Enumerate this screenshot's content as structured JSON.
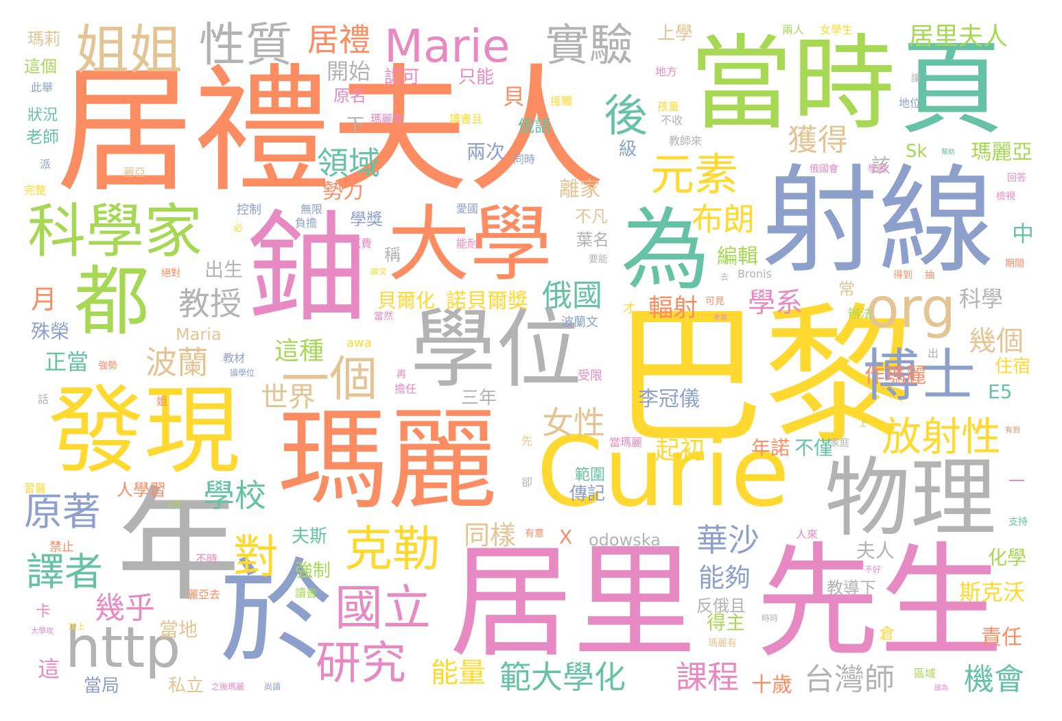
{
  "palette": {
    "orange": "#fc8d62",
    "blue": "#8da0cb",
    "pink": "#e78ac3",
    "green": "#a6d854",
    "yellow": "#ffd92f",
    "tan": "#e5c494",
    "gray": "#b3b3b3",
    "teal": "#66c2a5"
  },
  "words": [
    {
      "text": "居禮夫人",
      "color": "orange"
    },
    {
      "text": "巴黎",
      "color": "yellow"
    },
    {
      "text": "居里",
      "color": "pink"
    },
    {
      "text": "先生",
      "color": "pink"
    },
    {
      "text": "瑪麗",
      "color": "orange"
    },
    {
      "text": "射線",
      "color": "blue"
    },
    {
      "text": "當時",
      "color": "green"
    },
    {
      "text": "頁",
      "color": "teal"
    },
    {
      "text": "Curie",
      "color": "yellow"
    },
    {
      "text": "鈾",
      "color": "pink"
    },
    {
      "text": "年",
      "color": "gray"
    },
    {
      "text": "發現",
      "color": "yellow"
    },
    {
      "text": "學位",
      "color": "gray"
    },
    {
      "text": "於",
      "color": "blue"
    },
    {
      "text": "物理",
      "color": "gray"
    },
    {
      "text": "大學",
      "color": "orange"
    },
    {
      "text": "為",
      "color": "teal"
    },
    {
      "text": "都",
      "color": "green"
    },
    {
      "text": "科學家",
      "color": "green"
    },
    {
      "text": "Marie",
      "color": "pink"
    },
    {
      "text": "博士",
      "color": "blue"
    },
    {
      "text": "http",
      "color": "gray"
    },
    {
      "text": "克勒",
      "color": "yellow"
    },
    {
      "text": "姐姐",
      "color": "tan"
    },
    {
      "text": "性質",
      "color": "gray"
    },
    {
      "text": "實驗",
      "color": "gray"
    },
    {
      "text": "org",
      "color": "tan"
    },
    {
      "text": "一個",
      "color": "tan"
    },
    {
      "text": "國立",
      "color": "pink"
    },
    {
      "text": "研究",
      "color": "pink"
    },
    {
      "text": "元素",
      "color": "yellow"
    },
    {
      "text": "後",
      "color": "teal"
    },
    {
      "text": "放射性",
      "color": "yellow"
    },
    {
      "text": "原著",
      "color": "blue"
    },
    {
      "text": "譯者",
      "color": "teal"
    },
    {
      "text": "對",
      "color": "yellow"
    },
    {
      "text": "居禮",
      "color": "orange"
    },
    {
      "text": "居里夫人",
      "color": "green"
    },
    {
      "text": "獲得",
      "color": "tan"
    },
    {
      "text": "領域",
      "color": "teal"
    },
    {
      "text": "布朗",
      "color": "yellow"
    },
    {
      "text": "教授",
      "color": "gray"
    },
    {
      "text": "波蘭",
      "color": "tan"
    },
    {
      "text": "學校",
      "color": "teal"
    },
    {
      "text": "女性",
      "color": "tan"
    },
    {
      "text": "華沙",
      "color": "blue"
    },
    {
      "text": "範大學化",
      "color": "teal"
    },
    {
      "text": "課程",
      "color": "pink"
    },
    {
      "text": "台灣師",
      "color": "gray"
    },
    {
      "text": "機會",
      "color": "teal"
    },
    {
      "text": "幾乎",
      "color": "pink"
    },
    {
      "text": "世界",
      "color": "tan"
    },
    {
      "text": "能量",
      "color": "yellow"
    },
    {
      "text": "幾個",
      "color": "tan"
    },
    {
      "text": "俄國",
      "color": "teal"
    },
    {
      "text": "學系",
      "color": "pink"
    },
    {
      "text": "輻射",
      "color": "orange"
    },
    {
      "text": "起初",
      "color": "yellow"
    },
    {
      "text": "同樣",
      "color": "tan"
    },
    {
      "text": "能夠",
      "color": "blue"
    },
    {
      "text": "開始",
      "color": "gray"
    },
    {
      "text": "這種",
      "color": "green"
    },
    {
      "text": "李冠儀",
      "color": "blue"
    },
    {
      "text": "諾貝爾獎",
      "color": "yellow"
    },
    {
      "text": "貝爾化",
      "color": "yellow"
    },
    {
      "text": "勢力",
      "color": "orange"
    },
    {
      "text": "離家",
      "color": "tan"
    },
    {
      "text": "瑪麗亞",
      "color": "green"
    },
    {
      "text": "作瑪麗",
      "color": "orange"
    },
    {
      "text": "斯克沃",
      "color": "yellow"
    },
    {
      "text": "科學",
      "color": "gray"
    },
    {
      "text": "化學",
      "color": "green"
    },
    {
      "text": "責任",
      "color": "orange"
    },
    {
      "text": "夫人",
      "color": "gray"
    },
    {
      "text": "編輯",
      "color": "green"
    },
    {
      "text": "兩次",
      "color": "blue"
    },
    {
      "text": "得主",
      "color": "green"
    },
    {
      "text": "十歲",
      "color": "orange"
    },
    {
      "text": "年諾",
      "color": "orange"
    },
    {
      "text": "不僅",
      "color": "teal"
    },
    {
      "text": "教導下",
      "color": "gray"
    },
    {
      "text": "反俄且",
      "color": "gray"
    },
    {
      "text": "夫斯",
      "color": "teal"
    },
    {
      "text": "強制",
      "color": "green"
    },
    {
      "text": "當地",
      "color": "tan"
    },
    {
      "text": "人學習",
      "color": "orange"
    },
    {
      "text": "傳記",
      "color": "blue"
    },
    {
      "text": "範圍",
      "color": "teal"
    },
    {
      "text": "三年",
      "color": "gray"
    },
    {
      "text": "出生",
      "color": "gray"
    },
    {
      "text": "月",
      "color": "orange"
    },
    {
      "text": "殊榮",
      "color": "blue"
    },
    {
      "text": "正當",
      "color": "teal"
    },
    {
      "text": "瑪莉",
      "color": "tan"
    },
    {
      "text": "這個",
      "color": "green"
    },
    {
      "text": "狀況",
      "color": "teal"
    },
    {
      "text": "老師",
      "color": "teal"
    },
    {
      "text": "住宿",
      "color": "yellow"
    },
    {
      "text": "E5",
      "color": "teal"
    },
    {
      "text": "Sk",
      "color": "green"
    },
    {
      "text": "該",
      "color": "gray"
    },
    {
      "text": "下",
      "color": "gray"
    },
    {
      "text": "中",
      "color": "teal"
    },
    {
      "text": "貝",
      "color": "orange"
    },
    {
      "text": "俄語",
      "color": "teal"
    },
    {
      "text": "認可",
      "color": "pink"
    },
    {
      "text": "只能",
      "color": "pink"
    },
    {
      "text": "原名",
      "color": "pink"
    },
    {
      "text": "上學",
      "color": "tan"
    },
    {
      "text": "地方",
      "color": "pink"
    },
    {
      "text": "Maria",
      "color": "tan"
    },
    {
      "text": "odowska",
      "color": "gray"
    },
    {
      "text": "Bronis",
      "color": "gray"
    },
    {
      "text": "awa",
      "color": "yellow"
    },
    {
      "text": "當局",
      "color": "blue"
    },
    {
      "text": "私立",
      "color": "tan"
    },
    {
      "text": "這",
      "color": "pink"
    },
    {
      "text": "卡",
      "color": "pink"
    },
    {
      "text": "禁止",
      "color": "orange"
    },
    {
      "text": "倉",
      "color": "yellow"
    },
    {
      "text": "學獎",
      "color": "blue"
    },
    {
      "text": "稱",
      "color": "gray"
    },
    {
      "text": "葉名",
      "color": "gray"
    },
    {
      "text": "不凡",
      "color": "tan"
    },
    {
      "text": "控制",
      "color": "blue"
    },
    {
      "text": "波蘭文",
      "color": "blue"
    },
    {
      "text": "受限",
      "color": "pink"
    },
    {
      "text": "孩童",
      "color": "yellow"
    },
    {
      "text": "不收",
      "color": "gray"
    },
    {
      "text": "教師來",
      "color": "gray"
    },
    {
      "text": "兩人",
      "color": "green"
    },
    {
      "text": "女學生",
      "color": "yellow"
    },
    {
      "text": "級",
      "color": "blue"
    },
    {
      "text": "常",
      "color": "tan"
    },
    {
      "text": "辦法",
      "color": "green"
    },
    {
      "text": "才",
      "color": "yellow"
    },
    {
      "text": "X",
      "color": "orange"
    },
    {
      "text": "一",
      "color": "pink"
    },
    {
      "text": "讀書且",
      "color": "yellow"
    },
    {
      "text": "瑪麗勢",
      "color": "pink"
    },
    {
      "text": "接觸",
      "color": "yellow"
    },
    {
      "text": "同時",
      "color": "blue"
    },
    {
      "text": "愛國",
      "color": "blue"
    },
    {
      "text": "無限",
      "color": "blue"
    },
    {
      "text": "負擔",
      "color": "blue"
    },
    {
      "text": "花費",
      "color": "pink"
    },
    {
      "text": "能耐",
      "color": "pink"
    },
    {
      "text": "此舉",
      "color": "blue"
    },
    {
      "text": "派",
      "color": "blue"
    },
    {
      "text": "完整",
      "color": "yellow"
    },
    {
      "text": "麗亞",
      "color": "tan"
    },
    {
      "text": "話",
      "color": "gray"
    },
    {
      "text": "習醫",
      "color": "yellow"
    },
    {
      "text": "姐",
      "color": "orange"
    },
    {
      "text": "強勢",
      "color": "orange"
    },
    {
      "text": "教材",
      "color": "blue"
    },
    {
      "text": "讀學位",
      "color": "blue"
    },
    {
      "text": "絕對",
      "color": "orange"
    },
    {
      "text": "必",
      "color": "yellow"
    },
    {
      "text": "要能",
      "color": "gray"
    },
    {
      "text": "去",
      "color": "gray"
    },
    {
      "text": "得到",
      "color": "orange"
    },
    {
      "text": "抽",
      "color": "orange"
    },
    {
      "text": "期間",
      "color": "orange"
    },
    {
      "text": "檢視",
      "color": "pink"
    },
    {
      "text": "回答",
      "color": "pink"
    },
    {
      "text": "學習",
      "color": "pink"
    },
    {
      "text": "俄國會",
      "color": "pink"
    },
    {
      "text": "地位",
      "color": "blue"
    },
    {
      "text": "讓",
      "color": "gray"
    },
    {
      "text": "幫助",
      "color": "teal"
    },
    {
      "text": "可見",
      "color": "orange"
    },
    {
      "text": "當然",
      "color": "pink"
    },
    {
      "text": "論文",
      "color": "yellow"
    },
    {
      "text": "出",
      "color": "gray"
    },
    {
      "text": "再",
      "color": "pink"
    },
    {
      "text": "擔任",
      "color": "pink"
    },
    {
      "text": "先",
      "color": "tan"
    },
    {
      "text": "卻",
      "color": "gray"
    },
    {
      "text": "當瑪麗",
      "color": "pink"
    },
    {
      "text": "家庭",
      "color": "gray"
    },
    {
      "text": "上",
      "color": "green"
    },
    {
      "text": "支持",
      "color": "teal"
    },
    {
      "text": "有意",
      "color": "orange"
    },
    {
      "text": "人來",
      "color": "pink"
    },
    {
      "text": "不時",
      "color": "pink"
    },
    {
      "text": "不好",
      "color": "pink"
    },
    {
      "text": "時時",
      "color": "gray"
    },
    {
      "text": "瑪麗有",
      "color": "tan"
    },
    {
      "text": "區域",
      "color": "green"
    },
    {
      "text": "之後瑪麗",
      "color": "pink"
    },
    {
      "text": "尚讀",
      "color": "blue"
    },
    {
      "text": "麗亞去",
      "color": "orange"
    },
    {
      "text": "讀書",
      "color": "green"
    },
    {
      "text": "加上",
      "color": "yellow"
    },
    {
      "text": "大學攻",
      "color": "pink"
    },
    {
      "text": "社會",
      "color": "green"
    },
    {
      "text": "國為",
      "color": "pink"
    },
    {
      "text": "有到",
      "color": "orange"
    },
    {
      "text": "考察",
      "color": "pink"
    }
  ]
}
